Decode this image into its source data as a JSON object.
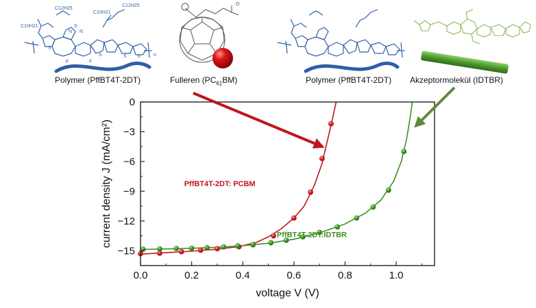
{
  "molecules": {
    "polymer_left_label": "Polymer (PffBT4T-2DT)",
    "fullerene_label": "Fulleren (PC61BM)",
    "polymer_right_label": "Polymer (PffBT4T-2DT)",
    "acceptor_label": "Akzeptormolekül (IDTBR)",
    "polymer_chain": {
      "side_chains_left": [
        "C10H21",
        "C12H25"
      ],
      "side_chains_right": [
        "C10H21",
        "C12H25"
      ],
      "atom_labels": [
        "N",
        "S",
        "N",
        "F",
        "F",
        "S",
        "S",
        "S",
        "S"
      ],
      "repeat_unit": "n"
    },
    "fullerene_ester": "O"
  },
  "colors": {
    "polymer": "#2f5ea8",
    "pcbm": "#c0151d",
    "idtbr": "#3c8f24",
    "acceptor_structure": "#8ab85a"
  },
  "chart_data": {
    "type": "line",
    "xlabel": "voltage V (V)",
    "ylabel": "current density J (mA/cm²)",
    "xlim": [
      0.0,
      1.15
    ],
    "ylim": [
      -16.5,
      0
    ],
    "xticks": [
      0.0,
      0.2,
      0.4,
      0.6,
      0.8,
      1.0
    ],
    "yticks": [
      0,
      -3,
      -6,
      -9,
      -12,
      -15
    ],
    "grid": false,
    "series": [
      {
        "name": "PffBT4T-2DT: PCBM",
        "color": "#c0151d",
        "points": [
          [
            0.0,
            -15.3
          ],
          [
            0.075,
            -15.25
          ],
          [
            0.16,
            -15.1
          ],
          [
            0.235,
            -14.95
          ],
          [
            0.3,
            -14.8
          ],
          [
            0.385,
            -14.6
          ],
          [
            0.44,
            -14.4
          ],
          [
            0.52,
            -13.5
          ],
          [
            0.6,
            -11.7
          ],
          [
            0.665,
            -9.1
          ],
          [
            0.71,
            -5.7
          ],
          [
            0.745,
            -2.2
          ]
        ],
        "curve": [
          [
            0.0,
            -15.35
          ],
          [
            0.1,
            -15.2
          ],
          [
            0.2,
            -15.05
          ],
          [
            0.3,
            -14.85
          ],
          [
            0.38,
            -14.6
          ],
          [
            0.45,
            -14.2
          ],
          [
            0.5,
            -13.6
          ],
          [
            0.55,
            -12.8
          ],
          [
            0.6,
            -11.7
          ],
          [
            0.64,
            -10.5
          ],
          [
            0.68,
            -8.4
          ],
          [
            0.71,
            -6.2
          ],
          [
            0.73,
            -4.0
          ],
          [
            0.75,
            -1.8
          ],
          [
            0.765,
            0.0
          ]
        ]
      },
      {
        "name": "PffBT4T-2DT:IDTBR",
        "color": "#3c8f24",
        "points": [
          [
            0.01,
            -14.85
          ],
          [
            0.075,
            -14.82
          ],
          [
            0.14,
            -14.78
          ],
          [
            0.2,
            -14.75
          ],
          [
            0.26,
            -14.7
          ],
          [
            0.325,
            -14.62
          ],
          [
            0.38,
            -14.52
          ],
          [
            0.44,
            -14.38
          ],
          [
            0.51,
            -14.2
          ],
          [
            0.57,
            -13.95
          ],
          [
            0.635,
            -13.6
          ],
          [
            0.7,
            -13.15
          ],
          [
            0.77,
            -12.6
          ],
          [
            0.845,
            -11.7
          ],
          [
            0.91,
            -10.6
          ],
          [
            0.97,
            -8.9
          ],
          [
            1.03,
            -5.0
          ]
        ],
        "curve": [
          [
            0.0,
            -14.88
          ],
          [
            0.1,
            -14.82
          ],
          [
            0.2,
            -14.75
          ],
          [
            0.3,
            -14.66
          ],
          [
            0.4,
            -14.5
          ],
          [
            0.5,
            -14.25
          ],
          [
            0.6,
            -13.85
          ],
          [
            0.7,
            -13.2
          ],
          [
            0.8,
            -12.3
          ],
          [
            0.88,
            -11.2
          ],
          [
            0.94,
            -9.9
          ],
          [
            0.99,
            -8.0
          ],
          [
            1.02,
            -6.0
          ],
          [
            1.04,
            -3.8
          ],
          [
            1.055,
            -1.5
          ],
          [
            1.063,
            0.0
          ]
        ]
      }
    ],
    "annotations": [
      {
        "text": "PffBT4T-2DT: PCBM",
        "color": "#c0151d",
        "x": 0.31,
        "y": -8.5
      },
      {
        "text": "PffBT4T-2DT:IDTBR",
        "color": "#3c8f24",
        "x": 0.67,
        "y": -13.65
      }
    ],
    "arrows": [
      {
        "series": "PffBT4T-2DT: PCBM",
        "from": "Fulleren (PC61BM)",
        "to": [
          0.72,
          -4.6
        ],
        "color": "#c0151d"
      },
      {
        "series": "PffBT4T-2DT:IDTBR",
        "from": "Akzeptormolekül (IDTBR)",
        "to": [
          1.07,
          -2.6
        ],
        "color": "#5e8a3c"
      }
    ]
  }
}
